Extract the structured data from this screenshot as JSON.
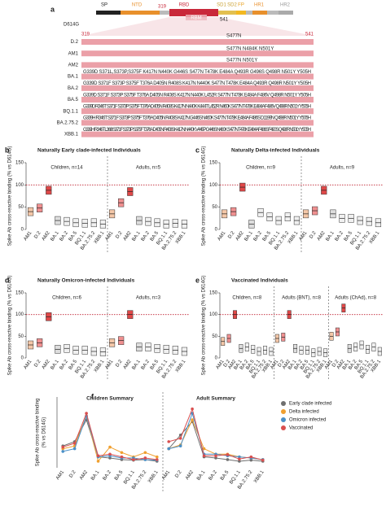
{
  "panel_a": {
    "panel": "a",
    "variant": "D614G",
    "domains": [
      "SP",
      "NTD",
      "RBD",
      "SD1",
      "SD2",
      "FP",
      "HR1",
      "HR2"
    ],
    "rbd_start": "319",
    "rbd_end": "541",
    "rbm": "RBM",
    "d2_mutation": "S477N",
    "rows": [
      {
        "name": "D.2",
        "mutations": ""
      },
      {
        "name": "AM1",
        "mutations": "S477N N484K N501Y"
      },
      {
        "name": "AM2",
        "mutations": "S477N N501Y"
      },
      {
        "name": "BA.1",
        "mutations": "G339D   S371L,S373P,S375F   K417N   N440K G446S   S477N T478K E484A Q493R G496S Q498R N501Y Y505H"
      },
      {
        "name": "BA.2",
        "mutations": "G339D   S371F S373P S375F T376A D405N R408S K417N   N440K   S477N T478K E484A Q493R   Q498R N501Y Y505H"
      },
      {
        "name": "BA.5",
        "mutations": "G339D   S371F S373P S375F T376A D405N R408S K417N N440K L452R   S477N T478K E484A F486V Q498R N501Y Y505H"
      },
      {
        "name": "BQ.1.1",
        "mutations": "G339D R346T S371F S373P S375F T376A D405N R408S K417N N440K K444T L452R N460K S477N T478K E484A F486V Q498R N501Y Y505H"
      },
      {
        "name": "BA.2.75.2",
        "mutations": "G339H R346T S371F S373P S375F T376A D405N R408S K417N G446S N460K S477N T478K E484A F486S D1199N Q498R N501Y Y505H"
      },
      {
        "name": "XBB.1",
        "mutations": "G339H R346T L368I S371F S373P S375F T376A D405N R408S K417N N440K V445P G446S N460K S477N T478K E484A F486S F490S Q498R N501Y Y505H"
      }
    ]
  },
  "chart_data": [
    {
      "type": "box",
      "panel": "b",
      "title": "Naturally Early clade-infected Individuals",
      "y_label": "Spike Ab cross-reactive binding (% vs D614G)",
      "ylim": [
        0,
        150
      ],
      "yticks": [
        0,
        50,
        100,
        150
      ],
      "reference_line": 100,
      "categories": [
        "AM1",
        "D.2",
        "AM2",
        "BA.1",
        "BA.2",
        "BA.5",
        "BQ.1.1",
        "BA.2.75.2",
        "XBB.1"
      ],
      "category_colors": [
        "#f4c7a8",
        "#f09090",
        "#e04848",
        "#dddddd",
        "#f0f0f0",
        "#f0f0f0",
        "#f0f0f0",
        "#f0f0f0",
        "#f0f0f0"
      ],
      "groups": [
        {
          "label": "Children, n=14",
          "values": [
            40,
            48,
            88,
            20,
            18,
            15,
            14,
            15,
            12
          ]
        },
        {
          "label": "Adults, n=5",
          "values": [
            35,
            60,
            85,
            20,
            18,
            15,
            12,
            14,
            12
          ]
        }
      ]
    },
    {
      "type": "box",
      "panel": "c",
      "title": "Naturally Delta-infected Individuals",
      "y_label": "Spike Ab cross-reactive binding (% vs D614G)",
      "ylim": [
        0,
        150
      ],
      "yticks": [
        0,
        50,
        100,
        150
      ],
      "reference_line": 100,
      "categories": [
        "AM1",
        "D.2",
        "AM2",
        "BA.1",
        "BA.2",
        "BA.5",
        "BQ.1.1",
        "BA.2.75.2",
        "XBB.1"
      ],
      "category_colors": [
        "#f4c7a8",
        "#f09090",
        "#e04848",
        "#dddddd",
        "#f0f0f0",
        "#f0f0f0",
        "#f0f0f0",
        "#f0f0f0",
        "#f0f0f0"
      ],
      "groups": [
        {
          "label": "Children, n=9",
          "values": [
            35,
            40,
            95,
            12,
            38,
            28,
            20,
            28,
            20
          ]
        },
        {
          "label": "Adults, n=9",
          "values": [
            35,
            42,
            88,
            35,
            25,
            25,
            20,
            18,
            15
          ]
        }
      ]
    },
    {
      "type": "box",
      "panel": "d",
      "title": "Naturally Omicron-infected Individuals",
      "y_label": "Spike Ab cross-reactive binding (% vs D614G)",
      "ylim": [
        0,
        150
      ],
      "yticks": [
        0,
        50,
        100,
        150
      ],
      "reference_line": 100,
      "categories": [
        "AM1",
        "D.2",
        "AM2",
        "BA.1",
        "BA.2",
        "BA.5",
        "BQ.1.1",
        "BA.2.75.2",
        "XBB.1"
      ],
      "category_colors": [
        "#f4c7a8",
        "#f09090",
        "#e04848",
        "#dddddd",
        "#f0f0f0",
        "#f0f0f0",
        "#f0f0f0",
        "#f0f0f0",
        "#f0f0f0"
      ],
      "groups": [
        {
          "label": "Children, n=6",
          "values": [
            30,
            35,
            95,
            20,
            22,
            18,
            18,
            15,
            14
          ]
        },
        {
          "label": "Adults, n=3",
          "values": [
            35,
            40,
            100,
            25,
            25,
            22,
            20,
            18,
            15
          ]
        }
      ]
    },
    {
      "type": "box",
      "panel": "e",
      "title": "Vaccinated Individuals",
      "y_label": "Spike Ab cross-reactive binding (% vs D614G)",
      "ylim": [
        0,
        150
      ],
      "yticks": [
        0,
        50,
        100,
        150
      ],
      "reference_line": 100,
      "categories": [
        "AM1",
        "D.2",
        "AM2",
        "BA.1",
        "BA.2",
        "BA.5",
        "BQ.1.1",
        "BA.2.75.2",
        "XBB.1"
      ],
      "category_colors": [
        "#f4c7a8",
        "#f09090",
        "#e04848",
        "#dddddd",
        "#f0f0f0",
        "#f0f0f0",
        "#f0f0f0",
        "#f0f0f0",
        "#f0f0f0"
      ],
      "groups": [
        {
          "label": "Children, n=8",
          "values": [
            38,
            45,
            100,
            22,
            25,
            20,
            15,
            18,
            15
          ]
        },
        {
          "label": "Adults (BNT), n=8",
          "values": [
            45,
            48,
            100,
            22,
            18,
            18,
            12,
            15,
            12
          ]
        },
        {
          "label": "Adults (ChAd), n=8",
          "values": [
            50,
            60,
            115,
            22,
            25,
            30,
            20,
            25,
            15
          ]
        }
      ]
    },
    {
      "type": "line",
      "panel": "f",
      "y_label": [
        "Spike Ab cross-reactive binding",
        "(% vs D614G)"
      ],
      "ylim": [
        0,
        130
      ],
      "group_titles": [
        "Children Summary",
        "Adult Summary"
      ],
      "categories": [
        "AM1",
        "D.2",
        "AM2",
        "BA.1",
        "BA.2",
        "BA.5",
        "BQ.1.1",
        "BA.2.75.2",
        "XBB.1",
        "AM1",
        "D.2",
        "AM2",
        "BA.1",
        "BA.2",
        "BA.5",
        "BQ.1.1",
        "BA.2.75.2",
        "XBB.1"
      ],
      "series": [
        {
          "name": "Early clade infected",
          "color": "#6f6f6f",
          "values": [
            40,
            48,
            88,
            20,
            18,
            15,
            14,
            15,
            12,
            35,
            60,
            85,
            20,
            18,
            15,
            12,
            14,
            12
          ]
        },
        {
          "name": "Delta infected",
          "color": "#f0a030",
          "values": [
            35,
            40,
            95,
            12,
            38,
            28,
            20,
            28,
            20,
            35,
            42,
            88,
            35,
            25,
            25,
            20,
            18,
            15
          ]
        },
        {
          "name": "Omicron infected",
          "color": "#4a90c8",
          "values": [
            30,
            35,
            95,
            20,
            22,
            18,
            18,
            15,
            14,
            35,
            40,
            100,
            25,
            25,
            22,
            20,
            18,
            15
          ]
        },
        {
          "name": "Vaccinated",
          "color": "#d94f4f",
          "values": [
            38,
            45,
            100,
            22,
            25,
            20,
            15,
            18,
            15,
            48,
            54,
            108,
            22,
            22,
            24,
            16,
            20,
            14
          ]
        }
      ]
    }
  ]
}
